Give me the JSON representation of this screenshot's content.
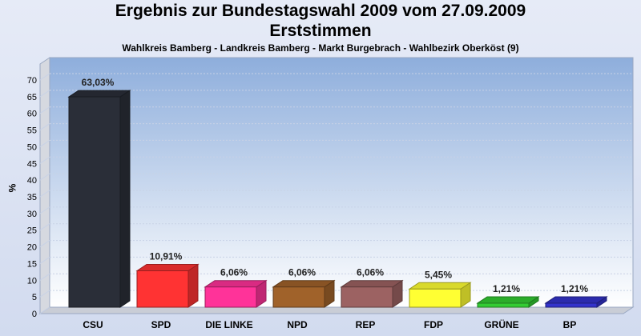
{
  "chart_data": {
    "type": "bar",
    "title": "Ergebnis zur Bundestagswahl 2009 vom 27.09.2009",
    "subtitle": "Erststimmen",
    "caption": "Wahlkreis Bamberg - Landkreis Bamberg - Markt Burgebrach - Wahlbezirk Oberköst (9)",
    "ylabel": "%",
    "ylim": [
      0,
      70
    ],
    "yticks": [
      0,
      5,
      10,
      15,
      20,
      25,
      30,
      35,
      40,
      45,
      50,
      55,
      60,
      65,
      70
    ],
    "grid": true,
    "categories": [
      "CSU",
      "SPD",
      "DIE LINKE",
      "NPD",
      "REP",
      "FDP",
      "GRÜNE",
      "BP"
    ],
    "values": [
      63.03,
      10.91,
      6.06,
      6.06,
      6.06,
      5.45,
      1.21,
      1.21
    ],
    "value_labels": [
      "63,03%",
      "10,91%",
      "6,06%",
      "6,06%",
      "6,06%",
      "5,45%",
      "1,21%",
      "1,21%"
    ],
    "colors": [
      "#2a2e38",
      "#ff3333",
      "#ff3399",
      "#a0622a",
      "#9c6262",
      "#ffff33",
      "#33cc33",
      "#3333cc"
    ]
  }
}
